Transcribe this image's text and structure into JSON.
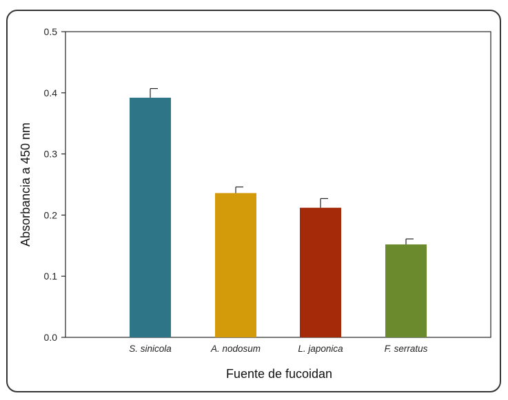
{
  "chart_data": {
    "type": "bar",
    "categories": [
      "S. sinicola",
      "A. nodosum",
      "L. japonica",
      "F. serratus"
    ],
    "values": [
      0.392,
      0.236,
      0.212,
      0.152
    ],
    "errors": [
      0.015,
      0.01,
      0.015,
      0.009
    ],
    "colors": [
      "#2e7587",
      "#d39b0a",
      "#a52a0a",
      "#6b8a2e"
    ],
    "title": "",
    "xlabel": "Fuente de fucoidan",
    "ylabel": "Absorbancia a 450 nm",
    "ylim": [
      0,
      0.5
    ],
    "yticks": [
      "0.0",
      "0.1",
      "0.2",
      "0.3",
      "0.4",
      "0.5"
    ],
    "ytick_values": [
      0,
      0.1,
      0.2,
      0.3,
      0.4,
      0.5
    ],
    "grid": false,
    "legend": "none"
  }
}
